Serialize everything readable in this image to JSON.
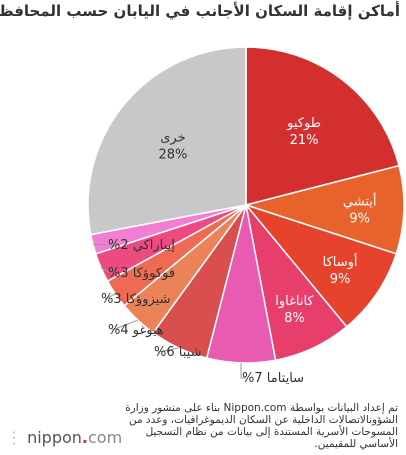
{
  "chart_data": {
    "type": "pie",
    "title": "أماكن إقامة السكان الأجانب في اليابان حسب المحافظة",
    "unit": "%",
    "slices": [
      {
        "label": "طوكيو",
        "value": 21,
        "color": "#d32f2f",
        "label_pos": "inside"
      },
      {
        "label": "أيتشي",
        "value": 9,
        "color": "#e8622b",
        "label_pos": "inside"
      },
      {
        "label": "أوساكا",
        "value": 9,
        "color": "#e5432c",
        "label_pos": "inside"
      },
      {
        "label": "كاناغاوا",
        "value": 8,
        "color": "#e83e6c",
        "label_pos": "inside"
      },
      {
        "label": "سايتاما",
        "value": 7,
        "color": "#e85bb0",
        "label_pos": "outside"
      },
      {
        "label": "شيبا",
        "value": 6,
        "color": "#d94f50",
        "label_pos": "outside"
      },
      {
        "label": "هيوغو",
        "value": 4,
        "color": "#ec8257",
        "label_pos": "outside"
      },
      {
        "label": "شيزوؤكا",
        "value": 3,
        "color": "#ee6a52",
        "label_pos": "outside"
      },
      {
        "label": "فوكوؤكا",
        "value": 3,
        "color": "#ee4a82",
        "label_pos": "outside"
      },
      {
        "label": "إيباراكي",
        "value": 2,
        "color": "#f07ed3",
        "label_pos": "outside"
      },
      {
        "label": "خرى",
        "value": 28,
        "color": "#c8c8c8",
        "label_pos": "inside"
      }
    ]
  },
  "note": "تم إعداد البيانات بواسطة Nippon.com بناء على منشور وزارة الشؤونالاتصالات الداخلية عن السكان الديموغرافيات، وعدد من المسوحات الأسرية المستندة إلى بيانات من نظام التسجيل الأساسي للمقيمين.",
  "logo": {
    "name": "nippon",
    "tld": "com",
    "dot": "."
  }
}
